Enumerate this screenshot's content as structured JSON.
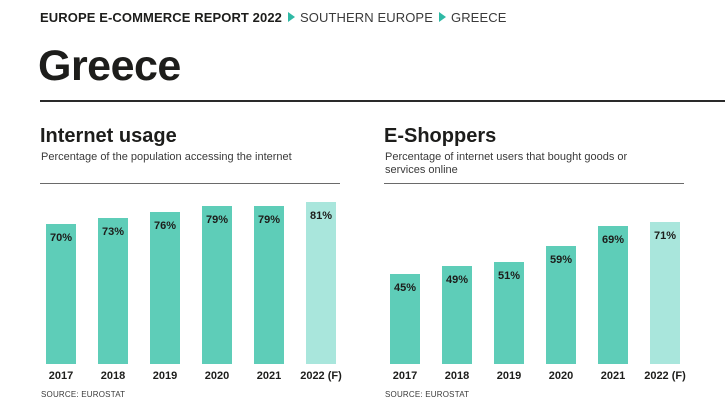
{
  "breadcrumb": {
    "report": "EUROPE E-COMMERCE REPORT 2022",
    "region": "SOUTHERN EUROPE",
    "country": "GREECE"
  },
  "page_title": "Greece",
  "colors": {
    "bar": "#5ecdb8",
    "bar_forecast": "#a9e6dc",
    "accent_arrow": "#2fb9a5"
  },
  "chart_data": [
    {
      "type": "bar",
      "title": "Internet usage",
      "subtitle": "Percentage of the population accessing the internet",
      "categories": [
        "2017",
        "2018",
        "2019",
        "2020",
        "2021",
        "2022 (F)"
      ],
      "values": [
        70,
        73,
        76,
        79,
        79,
        81
      ],
      "data_labels": [
        "70%",
        "73%",
        "76%",
        "79%",
        "79%",
        "81%"
      ],
      "forecast": [
        false,
        false,
        false,
        false,
        false,
        true
      ],
      "ylim": [
        0,
        100
      ],
      "grid": false,
      "source": "SOURCE: EUROSTAT"
    },
    {
      "type": "bar",
      "title": "E-Shoppers",
      "subtitle": "Percentage of internet users that bought goods or services online",
      "categories": [
        "2017",
        "2018",
        "2019",
        "2020",
        "2021",
        "2022 (F)"
      ],
      "values": [
        45,
        49,
        51,
        59,
        69,
        71
      ],
      "data_labels": [
        "45%",
        "49%",
        "51%",
        "59%",
        "69%",
        "71%"
      ],
      "forecast": [
        false,
        false,
        false,
        false,
        false,
        true
      ],
      "ylim": [
        0,
        100
      ],
      "grid": false,
      "source": "SOURCE: EUROSTAT"
    }
  ]
}
